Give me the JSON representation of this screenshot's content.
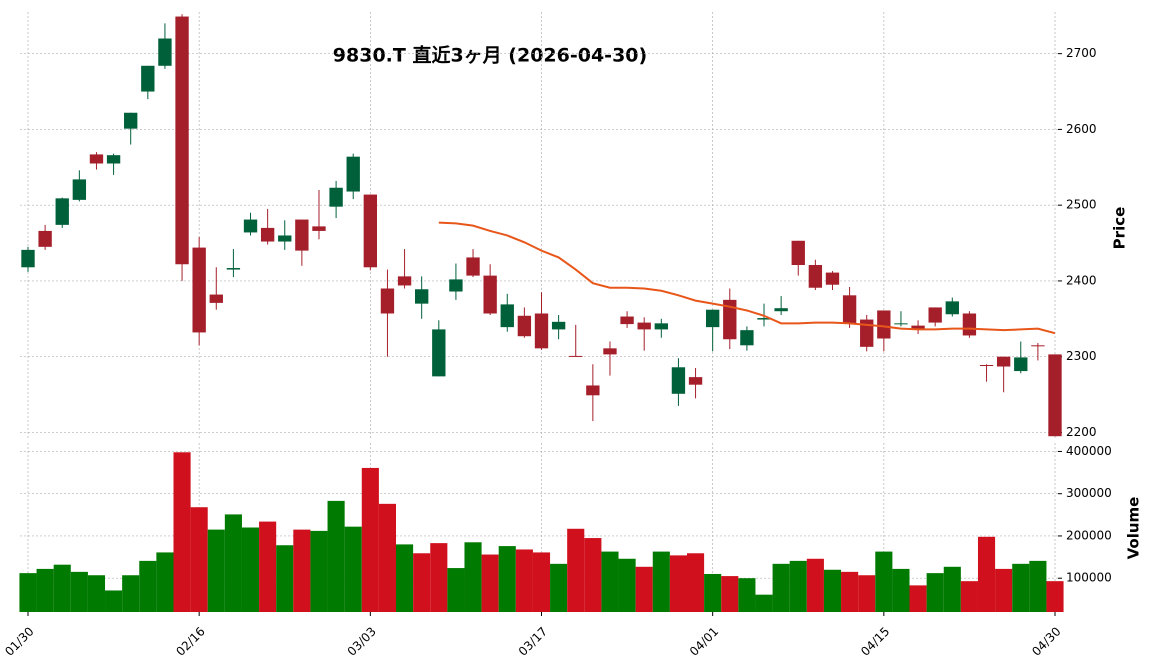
{
  "chart_data": {
    "type": "candlestick",
    "title": "9830.T  直近3ヶ月  (2026-04-30)",
    "ylabel": "Price",
    "y2label": "Volume",
    "categories": [
      "01/30",
      null,
      null,
      null,
      null,
      null,
      null,
      null,
      null,
      null,
      "02/16",
      null,
      null,
      null,
      null,
      null,
      null,
      null,
      null,
      null,
      "03/03",
      null,
      null,
      null,
      null,
      null,
      null,
      null,
      null,
      null,
      "03/17",
      null,
      null,
      null,
      null,
      null,
      null,
      null,
      null,
      null,
      "04/01",
      null,
      null,
      null,
      null,
      null,
      null,
      null,
      null,
      null,
      "04/15",
      null,
      null,
      null,
      null,
      null,
      null,
      null,
      null,
      null,
      "04/30"
    ],
    "open": [
      2418,
      2466,
      2474,
      2507,
      2567,
      2555,
      2601,
      2650,
      2684,
      2749,
      2444,
      2382,
      2415,
      2464,
      2470,
      2452,
      2481,
      2472,
      2498,
      2518,
      2514,
      2390,
      2406,
      2370,
      2274,
      2386,
      2431,
      2407,
      2339,
      2354,
      2357,
      2336,
      2301,
      2262,
      2311,
      2353,
      2345,
      2336,
      2251,
      2273,
      2339,
      2375,
      2315,
      2349,
      2360,
      2453,
      2421,
      2411,
      2381,
      2349,
      2361,
      2343,
      2341,
      2365,
      2356,
      2357,
      2289,
      2300,
      2281,
      2315,
      2303
    ],
    "high": [
      2445,
      2474,
      2510,
      2546,
      2570,
      2568,
      2622,
      2684,
      2740,
      2752,
      2458,
      2418,
      2442,
      2490,
      2495,
      2480,
      2481,
      2520,
      2532,
      2568,
      2514,
      2415,
      2442,
      2406,
      2348,
      2423,
      2442,
      2422,
      2383,
      2365,
      2385,
      2355,
      2342,
      2290,
      2320,
      2360,
      2352,
      2350,
      2298,
      2285,
      2362,
      2390,
      2340,
      2370,
      2380,
      2453,
      2428,
      2413,
      2392,
      2355,
      2361,
      2360,
      2348,
      2365,
      2378,
      2360,
      2290,
      2300,
      2320,
      2318,
      2303
    ],
    "low": [
      2412,
      2441,
      2470,
      2505,
      2547,
      2540,
      2580,
      2640,
      2680,
      2400,
      2315,
      2362,
      2405,
      2460,
      2448,
      2441,
      2420,
      2455,
      2483,
      2508,
      2414,
      2300,
      2390,
      2350,
      2274,
      2375,
      2405,
      2355,
      2333,
      2325,
      2309,
      2323,
      2300,
      2215,
      2275,
      2338,
      2308,
      2325,
      2235,
      2245,
      2307,
      2310,
      2308,
      2340,
      2355,
      2407,
      2388,
      2388,
      2338,
      2307,
      2307,
      2340,
      2330,
      2340,
      2353,
      2325,
      2267,
      2253,
      2278,
      2295,
      2195
    ],
    "close": [
      2441,
      2445,
      2509,
      2534,
      2555,
      2566,
      2622,
      2684,
      2720,
      2422,
      2332,
      2371,
      2417,
      2481,
      2452,
      2460,
      2440,
      2466,
      2523,
      2564,
      2418,
      2357,
      2394,
      2389,
      2336,
      2402,
      2407,
      2357,
      2369,
      2327,
      2311,
      2346,
      2300,
      2249,
      2303,
      2343,
      2336,
      2344,
      2286,
      2263,
      2362,
      2323,
      2335,
      2351,
      2364,
      2421,
      2391,
      2395,
      2344,
      2313,
      2324,
      2344,
      2337,
      2345,
      2373,
      2328,
      2288,
      2287,
      2299,
      2314,
      2195
    ],
    "volume": [
      112000,
      122000,
      132000,
      115000,
      107000,
      71000,
      107000,
      141000,
      161000,
      398000,
      268000,
      215000,
      251000,
      220000,
      234000,
      178000,
      215000,
      212000,
      283000,
      222000,
      361000,
      276000,
      180000,
      159000,
      183000,
      124000,
      185000,
      156000,
      176000,
      168000,
      161000,
      134000,
      217000,
      195000,
      163000,
      146000,
      127000,
      163000,
      154000,
      159000,
      110000,
      105000,
      100000,
      61000,
      134000,
      141000,
      146000,
      120000,
      115000,
      107000,
      163000,
      122000,
      83000,
      112000,
      127000,
      93000,
      198000,
      122000,
      134000,
      141000,
      93000
    ],
    "ma": [
      null,
      null,
      null,
      null,
      null,
      null,
      null,
      null,
      null,
      null,
      null,
      null,
      null,
      null,
      null,
      null,
      null,
      null,
      null,
      null,
      null,
      null,
      null,
      null,
      2477,
      2476,
      2473,
      2466,
      2460,
      2451,
      2440,
      2431,
      2415,
      2397,
      2391,
      2391,
      2390,
      2387,
      2381,
      2374,
      2370,
      2366,
      2361,
      2354,
      2344,
      2344,
      2345,
      2345,
      2344,
      2342,
      2340,
      2337,
      2336,
      2336,
      2337,
      2337,
      2336,
      2335,
      2336,
      2337,
      2331
    ],
    "up_color": "#00603a",
    "down_color": "#a51f2b",
    "volume_up_color": "#007a00",
    "volume_down_color": "#d0101c",
    "ma_color": "#e8561a",
    "ylim": [
      2190,
      2755
    ],
    "yticks": [
      2200,
      2300,
      2400,
      2500,
      2600,
      2700
    ],
    "y2lim": [
      20000,
      420000
    ],
    "y2ticks": [
      100000,
      200000,
      300000,
      400000
    ],
    "grid": true
  }
}
